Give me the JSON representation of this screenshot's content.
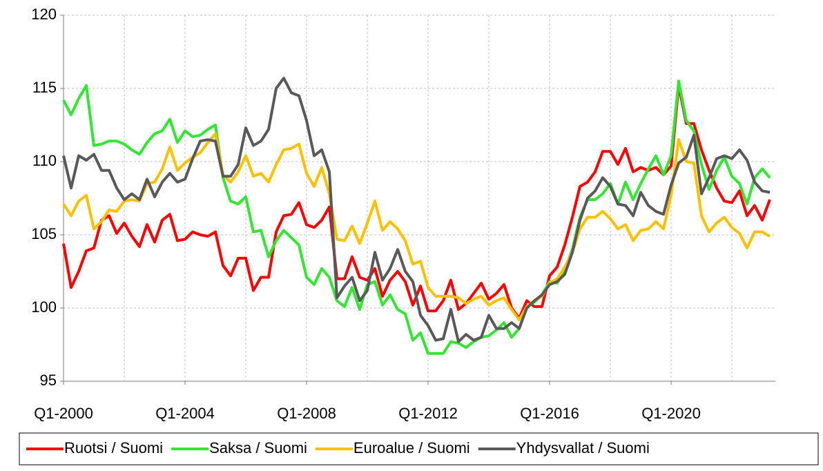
{
  "chart_data": {
    "type": "line",
    "categories": [
      "Q1-2000",
      null,
      null,
      null,
      null,
      null,
      null,
      null,
      null,
      null,
      null,
      null,
      null,
      null,
      null,
      null,
      "Q1-2004",
      null,
      null,
      null,
      null,
      null,
      null,
      null,
      null,
      null,
      null,
      null,
      null,
      null,
      null,
      null,
      "Q1-2008",
      null,
      null,
      null,
      null,
      null,
      null,
      null,
      null,
      null,
      null,
      null,
      null,
      null,
      null,
      null,
      "Q1-2012",
      null,
      null,
      null,
      null,
      null,
      null,
      null,
      null,
      null,
      null,
      null,
      null,
      null,
      null,
      null,
      "Q1-2016",
      null,
      null,
      null,
      null,
      null,
      null,
      null,
      null,
      null,
      null,
      null,
      null,
      null,
      null,
      null,
      "Q1-2020",
      null,
      null,
      null,
      null,
      null,
      null,
      null,
      null,
      null,
      null,
      null,
      null,
      null
    ],
    "series": [
      {
        "name": "Ruotsi / Suomi",
        "color": "#ff0000",
        "values": [
          104.4,
          101.4,
          102.5,
          103.9,
          104.1,
          106.0,
          106.3,
          105.1,
          105.8,
          104.9,
          104.2,
          105.7,
          104.5,
          106.0,
          106.4,
          104.6,
          104.7,
          105.2,
          105.0,
          104.9,
          105.2,
          102.9,
          102.2,
          103.4,
          103.4,
          101.2,
          102.1,
          102.1,
          105.2,
          106.3,
          106.4,
          107.2,
          105.7,
          105.5,
          106.0,
          106.9,
          102.0,
          102.0,
          103.5,
          102.1,
          101.9,
          102.7,
          100.8,
          101.9,
          102.5,
          101.8,
          100.2,
          101.5,
          99.8,
          99.8,
          100.5,
          101.9,
          99.9,
          100.3,
          101.0,
          101.7,
          100.6,
          101.0,
          101.6,
          100.0,
          99.3,
          100.5,
          100.1,
          100.1,
          102.2,
          102.8,
          104.3,
          106.2,
          108.3,
          108.6,
          109.3,
          110.7,
          110.7,
          109.8,
          110.9,
          109.3,
          109.6,
          109.4,
          109.6,
          109.1,
          109.7,
          115.2,
          112.6,
          112.6,
          110.8,
          109.4,
          108.2,
          107.3,
          107.2,
          108.0,
          106.3,
          107.0,
          106.0,
          107.4
        ]
      },
      {
        "name": "Saksa / Suomi",
        "color": "#33e633",
        "values": [
          114.2,
          113.2,
          114.3,
          115.2,
          111.1,
          111.2,
          111.4,
          111.4,
          111.2,
          110.8,
          110.5,
          111.3,
          111.9,
          112.1,
          112.9,
          111.3,
          112.1,
          111.7,
          111.8,
          112.2,
          112.5,
          108.9,
          107.3,
          107.1,
          107.6,
          105.2,
          105.3,
          103.5,
          104.6,
          105.3,
          104.8,
          104.3,
          102.1,
          101.6,
          102.7,
          102.1,
          100.5,
          100.1,
          101.4,
          99.9,
          101.6,
          101.8,
          100.2,
          100.9,
          99.9,
          99.6,
          97.8,
          98.3,
          96.9,
          96.9,
          96.9,
          97.7,
          97.6,
          97.3,
          97.7,
          98.0,
          98.1,
          98.5,
          99.0,
          98.0,
          98.6,
          100.1,
          100.4,
          100.9,
          101.8,
          101.7,
          102.6,
          104.0,
          106.2,
          107.4,
          107.4,
          107.8,
          108.5,
          107.1,
          108.6,
          107.4,
          108.5,
          109.5,
          110.4,
          109.1,
          110.4,
          115.5,
          112.8,
          112.1,
          109.8,
          108.1,
          109.4,
          110.3,
          109.0,
          108.5,
          107.1,
          108.9,
          109.5,
          108.9
        ]
      },
      {
        "name": "Euroalue / Suomi",
        "color": "#ffc000",
        "values": [
          107.1,
          106.3,
          107.3,
          107.7,
          105.4,
          105.9,
          106.7,
          106.6,
          107.3,
          107.4,
          107.3,
          108.5,
          108.6,
          109.5,
          111.0,
          109.4,
          109.9,
          110.3,
          110.6,
          111.3,
          111.9,
          109.1,
          108.6,
          109.3,
          110.4,
          109.0,
          109.2,
          108.6,
          109.8,
          110.8,
          110.9,
          111.2,
          109.2,
          108.3,
          109.6,
          107.8,
          104.7,
          104.6,
          105.6,
          104.4,
          105.8,
          107.3,
          105.3,
          105.9,
          105.4,
          104.6,
          103.0,
          103.2,
          101.4,
          100.8,
          100.8,
          100.8,
          100.7,
          100.3,
          100.6,
          100.8,
          100.2,
          100.5,
          100.7,
          99.9,
          99.2,
          100.1,
          100.5,
          100.8,
          101.7,
          102.0,
          102.8,
          103.8,
          105.4,
          106.2,
          106.2,
          106.6,
          106.1,
          105.4,
          105.7,
          104.6,
          105.3,
          105.4,
          105.9,
          105.4,
          107.7,
          111.5,
          110.0,
          109.9,
          106.3,
          105.2,
          105.8,
          106.2,
          105.5,
          105.1,
          104.1,
          105.2,
          105.2,
          104.9
        ]
      },
      {
        "name": "Yhdysvallat / Suomi",
        "color": "#595959",
        "values": [
          110.4,
          108.2,
          110.4,
          110.1,
          110.5,
          109.4,
          109.4,
          108.2,
          107.4,
          107.8,
          107.4,
          108.8,
          107.6,
          108.6,
          109.2,
          108.6,
          108.8,
          110.2,
          111.4,
          111.5,
          111.4,
          109.0,
          109.0,
          109.8,
          112.3,
          111.1,
          111.4,
          112.2,
          115.0,
          115.7,
          114.7,
          114.5,
          112.8,
          110.4,
          110.8,
          109.3,
          100.7,
          101.5,
          102.1,
          100.5,
          101.2,
          103.8,
          101.9,
          102.7,
          104.0,
          102.5,
          101.8,
          99.5,
          98.8,
          97.8,
          97.9,
          99.9,
          97.7,
          98.2,
          97.8,
          98.0,
          99.5,
          98.6,
          98.6,
          99.0,
          98.6,
          100.0,
          100.5,
          100.9,
          101.6,
          101.8,
          102.3,
          103.8,
          106.0,
          107.5,
          108.0,
          108.9,
          108.3,
          107.1,
          107.0,
          106.3,
          107.9,
          107.0,
          106.6,
          106.4,
          108.4,
          109.9,
          110.3,
          111.8,
          107.8,
          108.9,
          110.2,
          110.4,
          110.2,
          110.8,
          110.1,
          108.6,
          108.0,
          107.9
        ]
      }
    ],
    "ylim": [
      95,
      120
    ],
    "yticks": [
      95,
      100,
      105,
      110,
      115,
      120
    ],
    "grid": true,
    "legend": "bottom"
  }
}
